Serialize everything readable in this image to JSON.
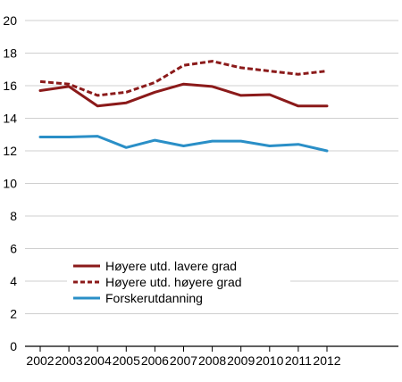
{
  "chart_data": {
    "type": "line",
    "title": "",
    "xlabel": "",
    "ylabel": "",
    "x": [
      "2002",
      "2003",
      "2004",
      "2005",
      "2006",
      "2007",
      "2008",
      "2009",
      "2010",
      "2011",
      "2012"
    ],
    "ylim": [
      0,
      20
    ],
    "yticks": [
      "0",
      "2",
      "4",
      "6",
      "8",
      "10",
      "12",
      "14",
      "16",
      "18",
      "20"
    ],
    "grid": "horizontal",
    "legend_position": "lower-left",
    "series": [
      {
        "name": "Høyere utd. lavere grad",
        "color": "#8b1a1a",
        "style": "solid",
        "values": [
          15.7,
          15.95,
          14.75,
          14.95,
          15.6,
          16.1,
          15.95,
          15.4,
          15.45,
          14.75,
          14.75
        ]
      },
      {
        "name": "Høyere utd. høyere grad",
        "color": "#8b1a1a",
        "style": "dashed",
        "values": [
          16.25,
          16.1,
          15.4,
          15.6,
          16.2,
          17.25,
          17.5,
          17.1,
          16.9,
          16.7,
          16.9
        ]
      },
      {
        "name": "Forskerutdanning",
        "color": "#2a8fc7",
        "style": "solid",
        "values": [
          12.85,
          12.85,
          12.9,
          12.2,
          12.65,
          12.3,
          12.6,
          12.6,
          12.3,
          12.4,
          12.0
        ]
      }
    ]
  }
}
